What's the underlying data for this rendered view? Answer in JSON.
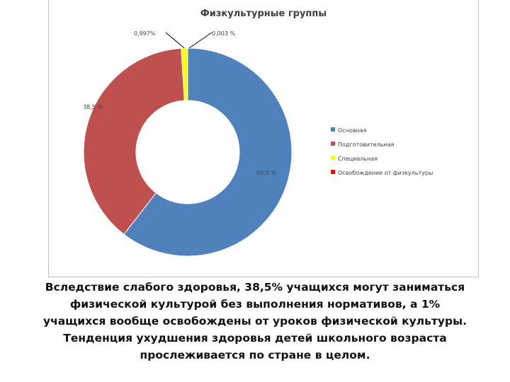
{
  "chart_data": {
    "type": "pie",
    "title": "Физкультурные группы",
    "donut": true,
    "slices": [
      {
        "name": "Основная",
        "value": 60.5,
        "label": "60,5 %",
        "color": "#4f81bd"
      },
      {
        "name": "Подготовительная",
        "value": 38.5,
        "label": "38,5 %",
        "color": "#c0504d"
      },
      {
        "name": "Специальная",
        "value": 0.997,
        "label": "0,997%",
        "color": "#ffff00"
      },
      {
        "name": "Освобождение от физкультуры",
        "value": 0.003,
        "label": "0,003 %",
        "color": "#ff0000"
      }
    ],
    "legend": "right"
  },
  "caption": {
    "lines": [
      "Вследствие слабого здоровья, 38,5% учащихся могут заниматься",
      "физической культурой без выполнения нормативов, а 1%",
      "учащихся вообще освобождены от уроков физической культуры.",
      "Тенденция ухудшения здоровья детей школьного возраста",
      "прослеживается по стране в целом."
    ]
  }
}
